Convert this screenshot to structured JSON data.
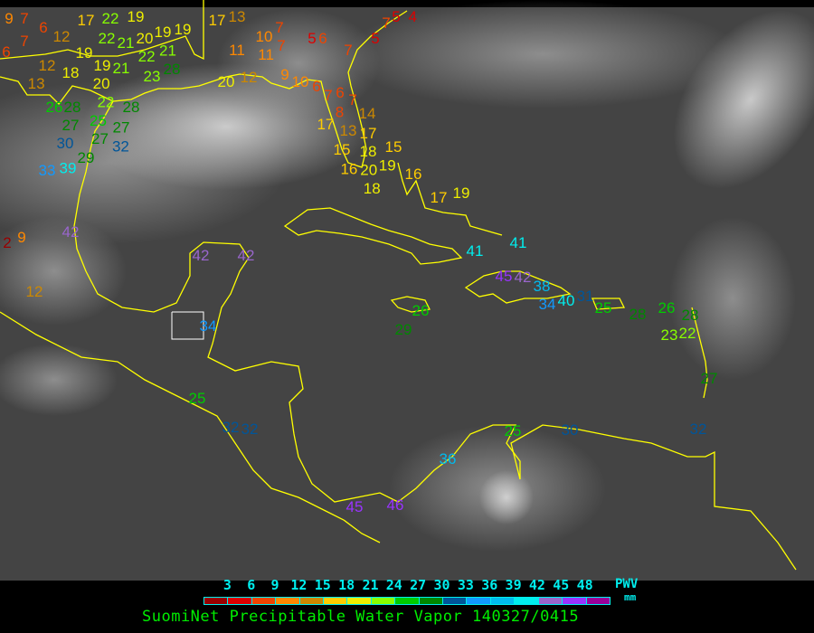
{
  "map": {
    "stations": [
      {
        "value": "9"
      },
      {
        "value": "7"
      },
      {
        "value": "6"
      },
      {
        "value": "12"
      },
      {
        "value": "7"
      },
      {
        "value": "6"
      },
      {
        "value": "17"
      },
      {
        "value": "22"
      },
      {
        "value": "19"
      },
      {
        "value": "22"
      },
      {
        "value": "21"
      },
      {
        "value": "20"
      },
      {
        "value": "19"
      },
      {
        "value": "21"
      },
      {
        "value": "19"
      },
      {
        "value": "22"
      },
      {
        "value": "28"
      },
      {
        "value": "23"
      },
      {
        "value": "19"
      },
      {
        "value": "12"
      },
      {
        "value": "18"
      },
      {
        "value": "13"
      },
      {
        "value": "19"
      },
      {
        "value": "21"
      },
      {
        "value": "20"
      },
      {
        "value": "22"
      },
      {
        "value": "26"
      },
      {
        "value": "28"
      },
      {
        "value": "25"
      },
      {
        "value": "28"
      },
      {
        "value": "27"
      },
      {
        "value": "27"
      },
      {
        "value": "27"
      },
      {
        "value": "30"
      },
      {
        "value": "29"
      },
      {
        "value": "32"
      },
      {
        "value": "39"
      },
      {
        "value": "33"
      },
      {
        "value": "17"
      },
      {
        "value": "13"
      },
      {
        "value": "10"
      },
      {
        "value": "7"
      },
      {
        "value": "11"
      },
      {
        "value": "11"
      },
      {
        "value": "7"
      },
      {
        "value": "5"
      },
      {
        "value": "6"
      },
      {
        "value": "7"
      },
      {
        "value": "5"
      },
      {
        "value": "7"
      },
      {
        "value": "5"
      },
      {
        "value": "4"
      },
      {
        "value": "12"
      },
      {
        "value": "20"
      },
      {
        "value": "9"
      },
      {
        "value": "10"
      },
      {
        "value": "6"
      },
      {
        "value": "7"
      },
      {
        "value": "6"
      },
      {
        "value": "8"
      },
      {
        "value": "7"
      },
      {
        "value": "14"
      },
      {
        "value": "17"
      },
      {
        "value": "13"
      },
      {
        "value": "17"
      },
      {
        "value": "18"
      },
      {
        "value": "15"
      },
      {
        "value": "15"
      },
      {
        "value": "16"
      },
      {
        "value": "20"
      },
      {
        "value": "19"
      },
      {
        "value": "18"
      },
      {
        "value": "16"
      },
      {
        "value": "17"
      },
      {
        "value": "19"
      },
      {
        "value": "2"
      },
      {
        "value": "9"
      },
      {
        "value": "42"
      },
      {
        "value": "12"
      },
      {
        "value": "42"
      },
      {
        "value": "42"
      },
      {
        "value": "41"
      },
      {
        "value": "41"
      },
      {
        "value": "45"
      },
      {
        "value": "42"
      },
      {
        "value": "38"
      },
      {
        "value": "34"
      },
      {
        "value": "40"
      },
      {
        "value": "31"
      },
      {
        "value": "26"
      },
      {
        "value": "29"
      },
      {
        "value": "25"
      },
      {
        "value": "28"
      },
      {
        "value": "26"
      },
      {
        "value": "28"
      },
      {
        "value": "22"
      },
      {
        "value": "23"
      },
      {
        "value": "34"
      },
      {
        "value": "25"
      },
      {
        "value": "32"
      },
      {
        "value": "32"
      },
      {
        "value": "27"
      },
      {
        "value": "25"
      },
      {
        "value": "30"
      },
      {
        "value": "32"
      },
      {
        "value": "36"
      },
      {
        "value": "45"
      },
      {
        "value": "46"
      }
    ],
    "coastline_color": "#ffff00",
    "border_color": "#ffffff"
  },
  "legend": {
    "ticks": [
      "3",
      "6",
      "9",
      "12",
      "15",
      "18",
      "21",
      "24",
      "27",
      "30",
      "33",
      "36",
      "39",
      "42",
      "45",
      "48"
    ],
    "colors": [
      "#990000",
      "#dd0000",
      "#ee4400",
      "#ff8800",
      "#cc8800",
      "#ffcc00",
      "#eeee00",
      "#88ff00",
      "#00cc00",
      "#008800",
      "#005599",
      "#1199ff",
      "#00bbee",
      "#00eeee",
      "#9966cc",
      "#9933ff",
      "#990099"
    ],
    "unit_top": "PWV",
    "unit_bottom": "mm",
    "caption": "SuomiNet Precipitable Water Vapor 140327/0415"
  }
}
